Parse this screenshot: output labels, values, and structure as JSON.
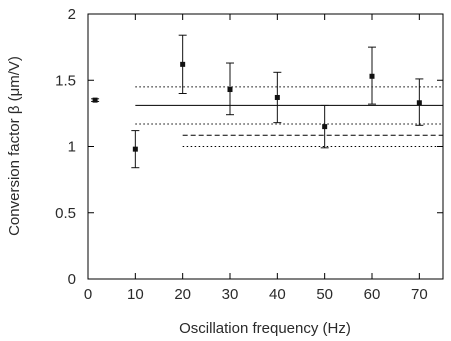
{
  "chart_data": {
    "type": "scatter",
    "xlabel": "Oscillation frequency (Hz)",
    "ylabel": "Conversion factor β (μm/V)",
    "xlim": [
      0,
      75
    ],
    "ylim": [
      0,
      2
    ],
    "x_ticks": [
      {
        "value": 0,
        "label": "0"
      },
      {
        "value": 10,
        "label": "10"
      },
      {
        "value": 20,
        "label": "20"
      },
      {
        "value": 30,
        "label": "30"
      },
      {
        "value": 40,
        "label": "40"
      },
      {
        "value": 50,
        "label": "50"
      },
      {
        "value": 60,
        "label": "60"
      },
      {
        "value": 70,
        "label": "70"
      }
    ],
    "y_ticks": [
      {
        "value": 0,
        "label": "0"
      },
      {
        "value": 0.5,
        "label": "0.5"
      },
      {
        "value": 1,
        "label": "1"
      },
      {
        "value": 1.5,
        "label": "1.5"
      },
      {
        "value": 2,
        "label": "2"
      }
    ],
    "grid": false,
    "legend": "none",
    "series": [
      {
        "points": [
          {
            "x": 10,
            "y": 0.98,
            "err_low": 0.84,
            "err_high": 1.12
          },
          {
            "x": 20,
            "y": 1.62,
            "err_low": 1.4,
            "err_high": 1.84
          },
          {
            "x": 30,
            "y": 1.43,
            "err_low": 1.24,
            "err_high": 1.63
          },
          {
            "x": 40,
            "y": 1.37,
            "err_low": 1.18,
            "err_high": 1.56
          },
          {
            "x": 50,
            "y": 1.15,
            "err_low": 0.99,
            "err_high": 1.31
          },
          {
            "x": 60,
            "y": 1.53,
            "err_low": 1.32,
            "err_high": 1.75
          },
          {
            "x": 70,
            "y": 1.33,
            "err_low": 1.16,
            "err_high": 1.51
          }
        ]
      },
      {
        "points": [
          {
            "x": 1.5,
            "y": 1.35,
            "err_low": 1.34,
            "err_high": 1.36
          }
        ]
      }
    ],
    "reference_lines": [
      {
        "y": 1.31,
        "x_start": 10,
        "x_end": 75,
        "style": "solid"
      },
      {
        "y": 1.45,
        "x_start": 10,
        "x_end": 75,
        "style": "dotted"
      },
      {
        "y": 1.17,
        "x_start": 10,
        "x_end": 75,
        "style": "dotted"
      },
      {
        "y": 1.085,
        "x_start": 20,
        "x_end": 75,
        "style": "dashed"
      },
      {
        "y": 1.0,
        "x_start": 20,
        "x_end": 75,
        "style": "dotted"
      }
    ],
    "colors": {
      "axis": "#000000",
      "marker": "#111111",
      "text": "#2a2a2a"
    }
  }
}
